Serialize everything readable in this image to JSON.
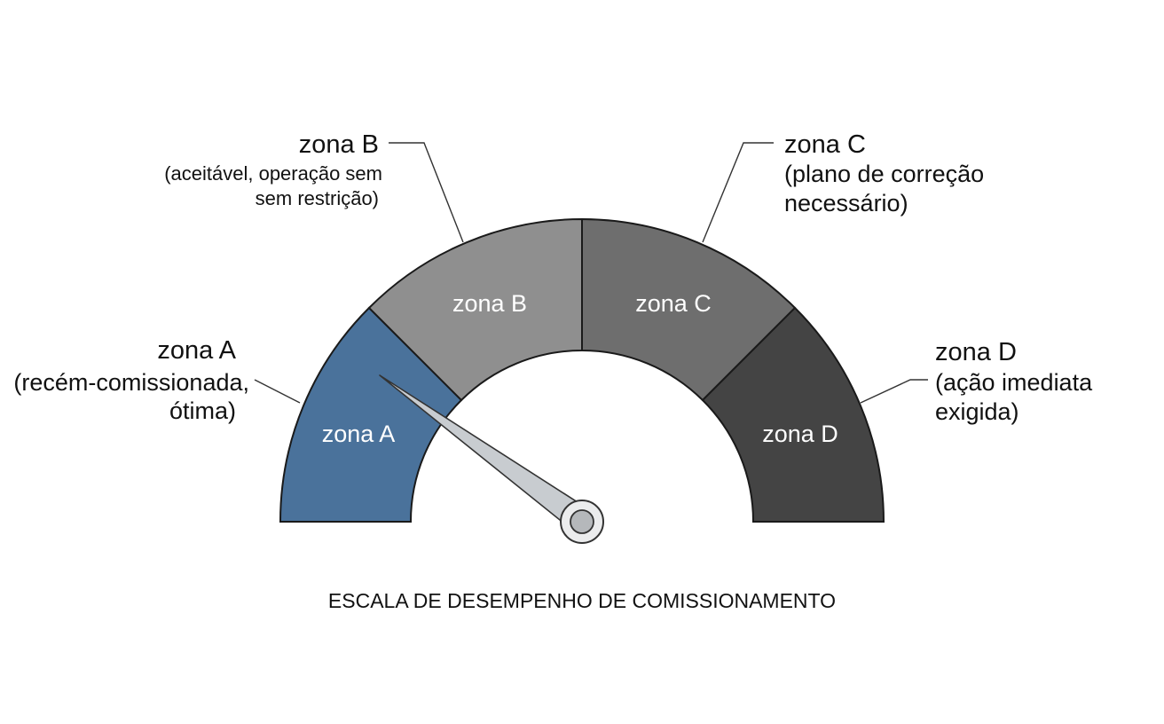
{
  "caption": "ESCALA DE DESEMPENHO DE COMISSIONAMENTO",
  "zones": [
    {
      "id": "a",
      "inner_label": "zona A",
      "title": "zona A",
      "description_lines": [
        "(recém-comissionada,",
        "ótima)"
      ],
      "color": "#4a729b"
    },
    {
      "id": "b",
      "inner_label": "zona B",
      "title": "zona B",
      "description_lines": [
        "(aceitável, operação sem",
        "sem restrição)"
      ],
      "color": "#8f8f8f"
    },
    {
      "id": "c",
      "inner_label": "zona C",
      "title": "zona C",
      "description_lines": [
        "(plano de correção",
        "necessário)"
      ],
      "color": "#6e6e6e"
    },
    {
      "id": "d",
      "inner_label": "zona D",
      "title": "zona D",
      "description_lines": [
        "(ação imediata",
        "exigida)"
      ],
      "color": "#444444"
    }
  ],
  "needle": {
    "zone": "zona A",
    "needle_color": "#c8ccd0",
    "hub_color": "#b5b8bb"
  }
}
